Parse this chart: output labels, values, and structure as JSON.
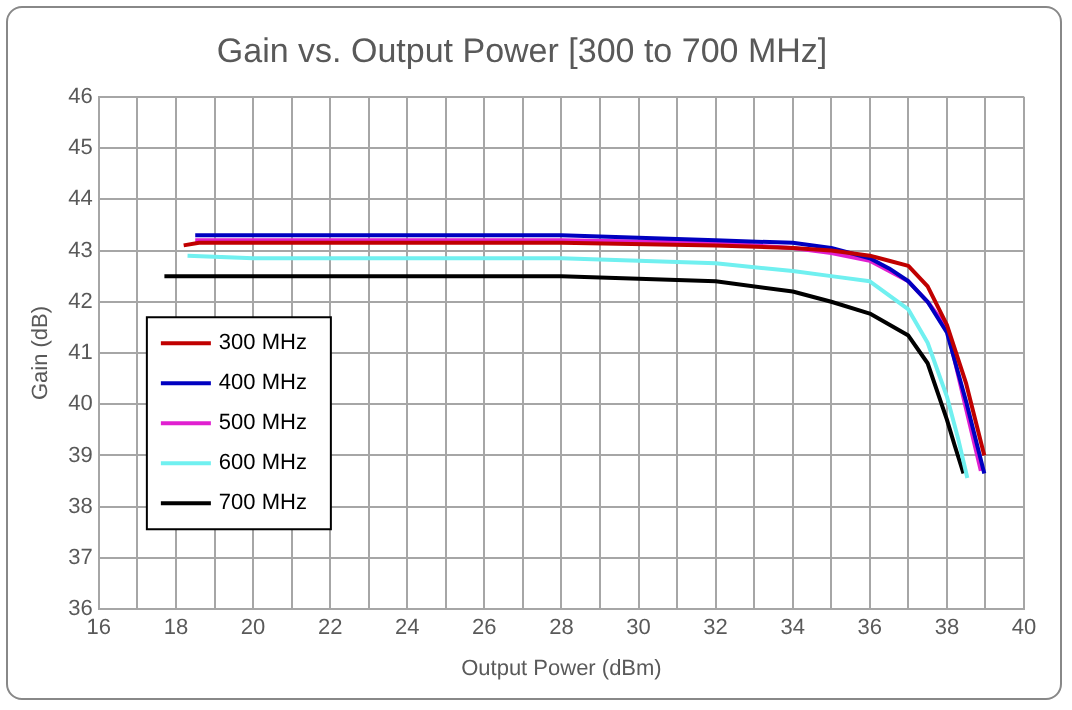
{
  "chart_data": {
    "type": "line",
    "title": "Gain vs. Output Power [300 to 700 MHz]",
    "xlabel": "Output Power (dBm)",
    "ylabel": "Gain (dB)",
    "xlim": [
      16,
      40
    ],
    "xticks": [
      16,
      {
        "value": 17,
        "label": null
      },
      18,
      {
        "value": 19,
        "label": null
      },
      20,
      {
        "value": 21,
        "label": null
      },
      22,
      {
        "value": 23,
        "label": null
      },
      24,
      {
        "value": 25,
        "label": null
      },
      26,
      {
        "value": 27,
        "label": null
      },
      28,
      {
        "value": 29,
        "label": null
      },
      30,
      {
        "value": 31,
        "label": null
      },
      32,
      {
        "value": 33,
        "label": null
      },
      34,
      {
        "value": 35,
        "label": null
      },
      36,
      {
        "value": 37,
        "label": null
      },
      38,
      {
        "value": 39,
        "label": null
      },
      40
    ],
    "ylim": [
      36,
      46
    ],
    "yticks": [
      36,
      37,
      38,
      39,
      40,
      41,
      42,
      43,
      44,
      45,
      46
    ],
    "grid": true,
    "legend": "left",
    "marker": "none",
    "line_style": "solid",
    "series": [
      {
        "name": "300 MHz",
        "color": "#c00000",
        "x": [
          18.2,
          18.6,
          20,
          24,
          28,
          32,
          34,
          35,
          36,
          36.5,
          37,
          37.5,
          38,
          38.5,
          38.97
        ],
        "values": [
          43.1,
          43.15,
          43.15,
          43.15,
          43.15,
          43.1,
          43.05,
          43.0,
          42.9,
          42.8,
          42.7,
          42.3,
          41.55,
          40.4,
          39.0
        ]
      },
      {
        "name": "400 MHz",
        "color": "#0000c0",
        "x": [
          18.5,
          20,
          24,
          28,
          32,
          34,
          35,
          36,
          36.5,
          37,
          37.5,
          38,
          38.5,
          38.97
        ],
        "values": [
          43.3,
          43.3,
          43.3,
          43.3,
          43.2,
          43.15,
          43.05,
          42.85,
          42.65,
          42.4,
          42.0,
          41.4,
          40.05,
          38.65
        ]
      },
      {
        "name": "500 MHz",
        "color": "#e020d0",
        "x": [
          18.5,
          20,
          24,
          28,
          32,
          34,
          35,
          36,
          36.5,
          37,
          37.5,
          38,
          38.5,
          38.88
        ],
        "values": [
          43.2,
          43.2,
          43.2,
          43.2,
          43.15,
          43.05,
          42.95,
          42.8,
          42.6,
          42.4,
          42.0,
          41.5,
          39.9,
          38.7
        ]
      },
      {
        "name": "600 MHz",
        "color": "#70f0f0",
        "x": [
          18.3,
          20,
          24,
          28,
          30,
          32,
          34,
          35,
          36,
          37,
          37.5,
          38,
          38.3,
          38.53
        ],
        "values": [
          42.9,
          42.85,
          42.85,
          42.85,
          42.8,
          42.75,
          42.6,
          42.5,
          42.4,
          41.85,
          41.2,
          40.15,
          39.3,
          38.56
        ]
      },
      {
        "name": "700 MHz",
        "color": "#000000",
        "x": [
          17.7,
          20,
          24,
          28,
          30,
          32,
          34,
          35,
          36,
          37,
          37.5,
          38,
          38.2,
          38.43
        ],
        "values": [
          42.5,
          42.5,
          42.5,
          42.5,
          42.45,
          42.4,
          42.2,
          42.0,
          41.77,
          41.34,
          40.8,
          39.7,
          39.2,
          38.65
        ]
      }
    ]
  }
}
